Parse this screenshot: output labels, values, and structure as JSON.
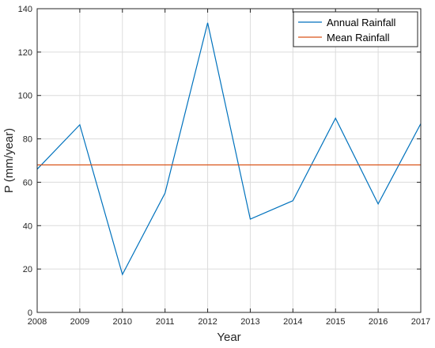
{
  "chart_data": {
    "type": "line",
    "title": "",
    "xlabel": "Year",
    "ylabel": "P (mm/year)",
    "xlim": [
      2008,
      2017
    ],
    "ylim": [
      0,
      140
    ],
    "x_ticks": [
      "2008",
      "2009",
      "2010",
      "2011",
      "2012",
      "2013",
      "2014",
      "2015",
      "2016",
      "2017"
    ],
    "y_ticks": [
      "0",
      "20",
      "40",
      "60",
      "80",
      "100",
      "120",
      "140"
    ],
    "grid": true,
    "legend_position": "top-right",
    "series": [
      {
        "name": "Annual Rainfall",
        "color": "#0072BD",
        "x": [
          2008,
          2009,
          2010,
          2011,
          2012,
          2013,
          2014,
          2015,
          2016,
          2017
        ],
        "y": [
          66,
          86.5,
          17.5,
          55,
          133.5,
          43,
          51.5,
          89.5,
          50,
          87
        ]
      },
      {
        "name": "Mean Rainfall",
        "color": "#D95319",
        "x": [
          2008,
          2017
        ],
        "y": [
          68,
          68
        ]
      }
    ]
  }
}
